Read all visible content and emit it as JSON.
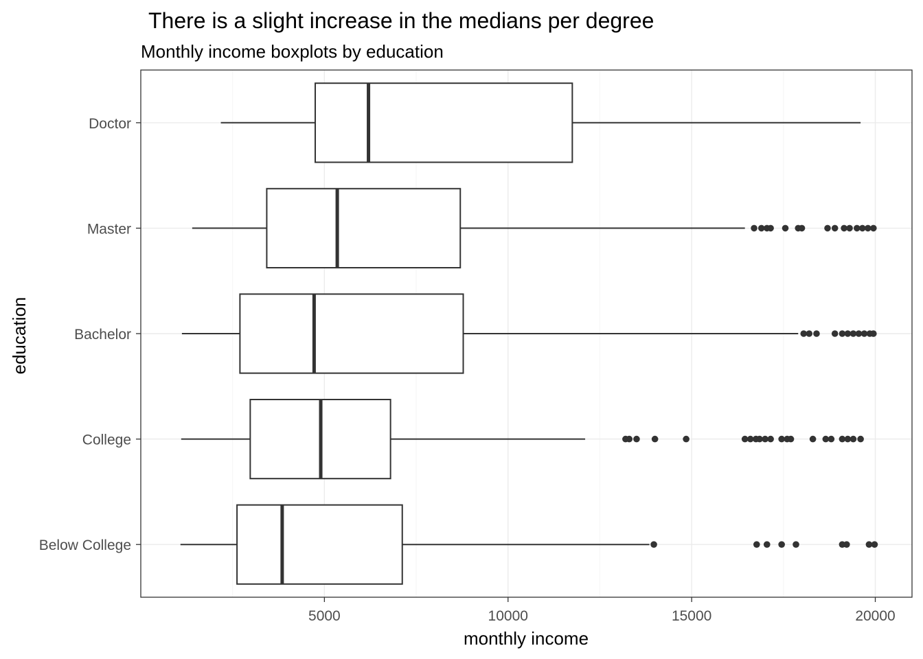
{
  "chart_data": {
    "type": "boxplot",
    "orientation": "horizontal",
    "title": "There is a slight increase in the medians per degree",
    "subtitle": "Monthly income boxplots by education",
    "xlabel": "monthly income",
    "ylabel": "education",
    "xlim": [
      0,
      21000
    ],
    "x_ticks": [
      5000,
      10000,
      15000,
      20000
    ],
    "x_tick_labels": [
      "5000",
      "10000",
      "15000",
      "20000"
    ],
    "grid": true,
    "categories": [
      "Below College",
      "College",
      "Bachelor",
      "Master",
      "Doctor"
    ],
    "boxes": [
      {
        "category": "Below College",
        "whisker_low": 1080,
        "q1": 2620,
        "median": 3850,
        "q3": 7120,
        "whisker_high": 13850,
        "outliers": [
          13970,
          16770,
          17050,
          17450,
          17840,
          19100,
          19220,
          19830,
          19980
        ]
      },
      {
        "category": "College",
        "whisker_low": 1100,
        "q1": 2980,
        "median": 4900,
        "q3": 6800,
        "whisker_high": 12100,
        "outliers": [
          13200,
          13300,
          13500,
          14000,
          14850,
          16450,
          16600,
          16750,
          16850,
          17000,
          17150,
          17450,
          17600,
          17700,
          18300,
          18650,
          18800,
          19100,
          19250,
          19400,
          19600
        ]
      },
      {
        "category": "Bachelor",
        "whisker_low": 1120,
        "q1": 2700,
        "median": 4720,
        "q3": 8780,
        "whisker_high": 17900,
        "outliers": [
          18050,
          18200,
          18400,
          18900,
          19100,
          19250,
          19400,
          19550,
          19700,
          19850,
          19950
        ]
      },
      {
        "category": "Master",
        "whisker_low": 1400,
        "q1": 3430,
        "median": 5350,
        "q3": 8700,
        "whisker_high": 16450,
        "outliers": [
          16700,
          16900,
          17050,
          17150,
          17550,
          17900,
          18000,
          18700,
          18900,
          19150,
          19300,
          19500,
          19650,
          19800,
          19950
        ]
      },
      {
        "category": "Doctor",
        "whisker_low": 2180,
        "q1": 4750,
        "median": 6200,
        "q3": 11750,
        "whisker_high": 19600,
        "outliers": []
      }
    ],
    "colors": {
      "box_stroke": "#333333",
      "outlier": "#333333",
      "grid_major": "#ebebeb",
      "grid_minor": "#f5f5f5",
      "panel_border": "#333333",
      "tick_label": "#4d4d4d"
    }
  }
}
